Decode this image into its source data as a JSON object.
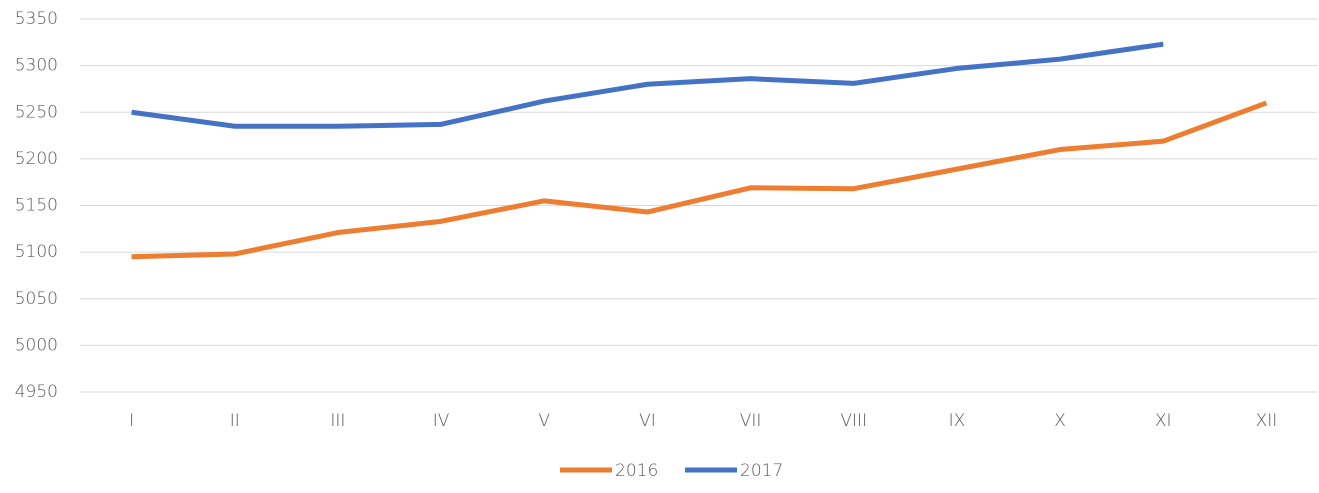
{
  "chart_data": {
    "type": "line",
    "categories": [
      "I",
      "II",
      "III",
      "IV",
      "V",
      "VI",
      "VII",
      "VIII",
      "IX",
      "X",
      "XI",
      "XII"
    ],
    "series": [
      {
        "name": "2016",
        "color": "#ed7d31",
        "values": [
          5095,
          5098,
          5121,
          5133,
          5155,
          5143,
          5169,
          5168,
          5189,
          5210,
          5219,
          5260
        ]
      },
      {
        "name": "2017",
        "color": "#4472c4",
        "values": [
          5250,
          5235,
          5235,
          5237,
          5262,
          5280,
          5286,
          5281,
          5297,
          5307,
          5323,
          null
        ]
      }
    ],
    "ylim": [
      4950,
      5350
    ],
    "yticks": [
      4950,
      5000,
      5050,
      5100,
      5150,
      5200,
      5250,
      5300,
      5350
    ],
    "grid": true,
    "legend": "bottom"
  }
}
